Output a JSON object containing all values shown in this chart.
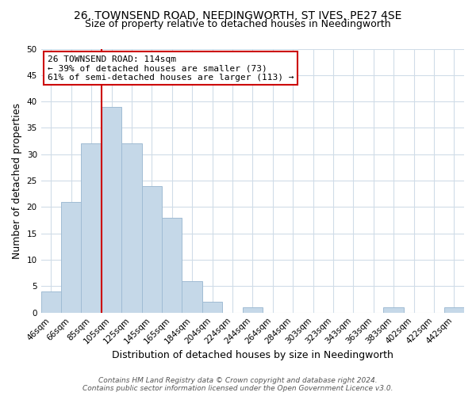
{
  "title": "26, TOWNSEND ROAD, NEEDINGWORTH, ST IVES, PE27 4SE",
  "subtitle": "Size of property relative to detached houses in Needingworth",
  "xlabel": "Distribution of detached houses by size in Needingworth",
  "ylabel": "Number of detached properties",
  "bar_labels": [
    "46sqm",
    "66sqm",
    "85sqm",
    "105sqm",
    "125sqm",
    "145sqm",
    "165sqm",
    "184sqm",
    "204sqm",
    "224sqm",
    "244sqm",
    "264sqm",
    "284sqm",
    "303sqm",
    "323sqm",
    "343sqm",
    "363sqm",
    "383sqm",
    "402sqm",
    "422sqm",
    "442sqm"
  ],
  "bar_values": [
    4,
    21,
    32,
    39,
    32,
    24,
    18,
    6,
    2,
    0,
    1,
    0,
    0,
    0,
    0,
    0,
    0,
    1,
    0,
    0,
    1
  ],
  "bar_color": "#c5d8e8",
  "bar_edgecolor": "#a0bcd4",
  "vline_color": "#cc0000",
  "ylim": [
    0,
    50
  ],
  "yticks": [
    0,
    5,
    10,
    15,
    20,
    25,
    30,
    35,
    40,
    45,
    50
  ],
  "annotation_title": "26 TOWNSEND ROAD: 114sqm",
  "annotation_line1": "← 39% of detached houses are smaller (73)",
  "annotation_line2": "61% of semi-detached houses are larger (113) →",
  "annotation_box_color": "#ffffff",
  "annotation_box_edgecolor": "#cc0000",
  "footer_line1": "Contains HM Land Registry data © Crown copyright and database right 2024.",
  "footer_line2": "Contains public sector information licensed under the Open Government Licence v3.0.",
  "background_color": "#ffffff",
  "grid_color": "#d0dce8",
  "title_fontsize": 10,
  "subtitle_fontsize": 9,
  "axis_label_fontsize": 9,
  "tick_fontsize": 7.5,
  "annotation_fontsize": 8,
  "footer_fontsize": 6.5
}
